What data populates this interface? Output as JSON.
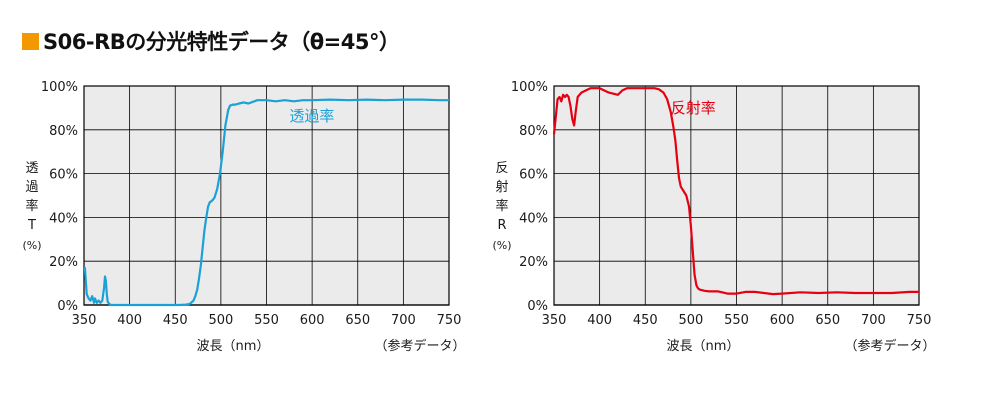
{
  "page": {
    "title": "S06-RBの分光特性データ（θ=45°）",
    "accent_color": "#f39800"
  },
  "chart_data": [
    {
      "type": "line",
      "title": "",
      "xlabel": "波長（nm）",
      "ylabel_chars": [
        "透",
        "過",
        "率",
        "T"
      ],
      "ylabel_unit": "(%)",
      "note": "（参考データ）",
      "xlim": [
        350,
        750
      ],
      "ylim": [
        0,
        100
      ],
      "x_ticks": [
        350,
        400,
        450,
        500,
        550,
        600,
        650,
        700,
        750
      ],
      "y_ticks": [
        0,
        20,
        40,
        60,
        80,
        100
      ],
      "y_tick_labels": [
        "0%",
        "20%",
        "40%",
        "60%",
        "80%",
        "100%"
      ],
      "grid": true,
      "background": "#ebebeb",
      "series": [
        {
          "name": "透過率",
          "color": "#1ba1d8",
          "x": [
            350,
            351,
            353,
            355,
            357,
            359,
            361,
            362,
            364,
            366,
            368,
            370,
            372,
            373,
            374,
            375,
            376,
            378,
            380,
            385,
            390,
            400,
            420,
            440,
            455,
            462,
            466,
            470,
            472,
            474,
            476,
            478,
            480,
            482,
            484,
            486,
            488,
            490,
            493,
            496,
            499,
            502,
            505,
            508,
            510,
            513,
            516,
            520,
            525,
            530,
            540,
            550,
            560,
            570,
            580,
            590,
            600,
            620,
            640,
            660,
            680,
            700,
            720,
            740,
            750
          ],
          "y": [
            17,
            17,
            5,
            3,
            2,
            4,
            1,
            3,
            1,
            2,
            1,
            2,
            8,
            13,
            11,
            5,
            1.5,
            0.3,
            0,
            0,
            0,
            0,
            0,
            0,
            0,
            0.2,
            0.5,
            2,
            4,
            7,
            12,
            18,
            26,
            34,
            40,
            45,
            47,
            47.5,
            49,
            53,
            60,
            70,
            82,
            89,
            91,
            91.5,
            91.5,
            92,
            92.5,
            92,
            93.5,
            93.5,
            93,
            93.5,
            93,
            93.5,
            93.5,
            93.8,
            93.5,
            93.8,
            93.5,
            93.8,
            93.8,
            93.5,
            93.5
          ]
        }
      ]
    },
    {
      "type": "line",
      "title": "",
      "xlabel": "波長（nm）",
      "ylabel_chars": [
        "反",
        "射",
        "率",
        "R"
      ],
      "ylabel_unit": "(%)",
      "note": "（参考データ）",
      "xlim": [
        350,
        750
      ],
      "ylim": [
        0,
        100
      ],
      "x_ticks": [
        350,
        400,
        450,
        500,
        550,
        600,
        650,
        700,
        750
      ],
      "y_ticks": [
        0,
        20,
        40,
        60,
        80,
        100
      ],
      "y_tick_labels": [
        "0%",
        "20%",
        "40%",
        "60%",
        "80%",
        "100%"
      ],
      "grid": true,
      "background": "#ebebeb",
      "series": [
        {
          "name": "反射率",
          "color": "#e60012",
          "x": [
            350,
            352,
            354,
            356,
            358,
            360,
            362,
            364,
            366,
            368,
            370,
            372,
            374,
            376,
            378,
            380,
            385,
            390,
            395,
            400,
            410,
            420,
            425,
            430,
            440,
            450,
            460,
            465,
            470,
            474,
            478,
            481,
            483,
            485,
            487,
            489,
            492,
            495,
            498,
            500,
            502,
            504,
            506,
            508,
            510,
            515,
            520,
            530,
            540,
            550,
            560,
            570,
            580,
            590,
            600,
            620,
            640,
            660,
            680,
            700,
            720,
            740,
            750
          ],
          "y": [
            78,
            86,
            94,
            95,
            93,
            96,
            95,
            96,
            95,
            91,
            85,
            82,
            89,
            95,
            96,
            97,
            98,
            99,
            99,
            99,
            97,
            96,
            98,
            99,
            99,
            99,
            99,
            98.5,
            97,
            94,
            88,
            81,
            75,
            66,
            58,
            54,
            52,
            50,
            45,
            36,
            25,
            14,
            9,
            7.5,
            7,
            6.5,
            6.2,
            6.2,
            5.2,
            5.2,
            6,
            6,
            5.5,
            5,
            5.2,
            5.8,
            5.5,
            5.8,
            5.5,
            5.5,
            5.5,
            6,
            6
          ]
        }
      ]
    }
  ]
}
